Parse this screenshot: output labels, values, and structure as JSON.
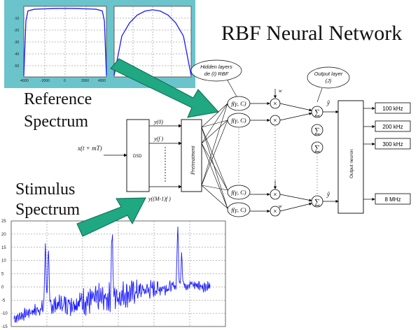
{
  "title": "RBF Neural Network",
  "reference_label": [
    "Reference",
    "Spectrum"
  ],
  "stimulus_label": [
    "Stimulus",
    "Spectrum"
  ],
  "hidden_layer_label": [
    "Hidden layers",
    "de (I) RBF"
  ],
  "output_layer_label": [
    "Output layer",
    "(J)"
  ],
  "input_signal": "x(t + mT)",
  "dsd_label": "DSD",
  "dsd_outputs": [
    "y(0)",
    "y(f )",
    "y((M-1)f )"
  ],
  "pretreatment_label": "Pretreatment",
  "rbf_node_label": "f(γ, C)",
  "weight_label": "w",
  "output_neuron_label": "Output neuron",
  "y_hat": "ŷ",
  "sum_symbol": "∑",
  "times_symbol": "×",
  "output_frequencies": [
    "100 kHz",
    "200 kHz",
    "300 kHz",
    "8 MHz"
  ],
  "colors": {
    "arrow_fill": "#1fa882",
    "arrow_stroke": "#0c6b52",
    "thumbnail_bg": "#6bc4cc",
    "plot_line": "#1a1aff"
  },
  "stimulus_chart_ticks": [
    "25",
    "20",
    "15",
    "10",
    "5",
    "0",
    "-5",
    "-10",
    "-15"
  ],
  "chart_data": [
    {
      "type": "line",
      "name": "reference-thumbnail-1",
      "x": [
        -4000,
        -3800,
        -3600,
        -3000,
        -2000,
        -1000,
        0,
        1000,
        2000,
        3000,
        3600,
        3800,
        4000
      ],
      "y": [
        -80,
        -15,
        -3,
        -1,
        -0.5,
        -0.2,
        0,
        -0.2,
        -0.5,
        -1,
        -3,
        -15,
        -80
      ],
      "xlim": [
        -4000,
        4000
      ],
      "ylim": [
        -80,
        0
      ]
    },
    {
      "type": "line",
      "name": "reference-thumbnail-2",
      "x": [
        0,
        0.1,
        0.2,
        0.3,
        0.4,
        0.5,
        0.6,
        0.7,
        0.8,
        0.9,
        1.0
      ],
      "y": [
        0,
        0.6,
        0.8,
        0.92,
        0.98,
        1.0,
        0.98,
        0.92,
        0.8,
        0.6,
        0
      ],
      "xlim": [
        0,
        1
      ],
      "ylim": [
        0,
        1
      ]
    },
    {
      "type": "line",
      "name": "stimulus-spectrum",
      "ylim": [
        -15,
        25
      ],
      "y_ticks": [
        25,
        20,
        15,
        10,
        5,
        0,
        -5,
        -10,
        -15
      ],
      "x": [
        0,
        1,
        2,
        3,
        4,
        5,
        6,
        7,
        8,
        9,
        10
      ],
      "y": [
        -12,
        -9,
        -7,
        -6,
        -5,
        -4,
        -2,
        -1,
        0,
        1,
        0
      ],
      "peaks": [
        {
          "x": 1.6,
          "y": 16
        },
        {
          "x": 1.75,
          "y": 13
        },
        {
          "x": 5.0,
          "y": 22
        },
        {
          "x": 8.35,
          "y": 22
        },
        {
          "x": 8.55,
          "y": 13
        }
      ]
    }
  ]
}
